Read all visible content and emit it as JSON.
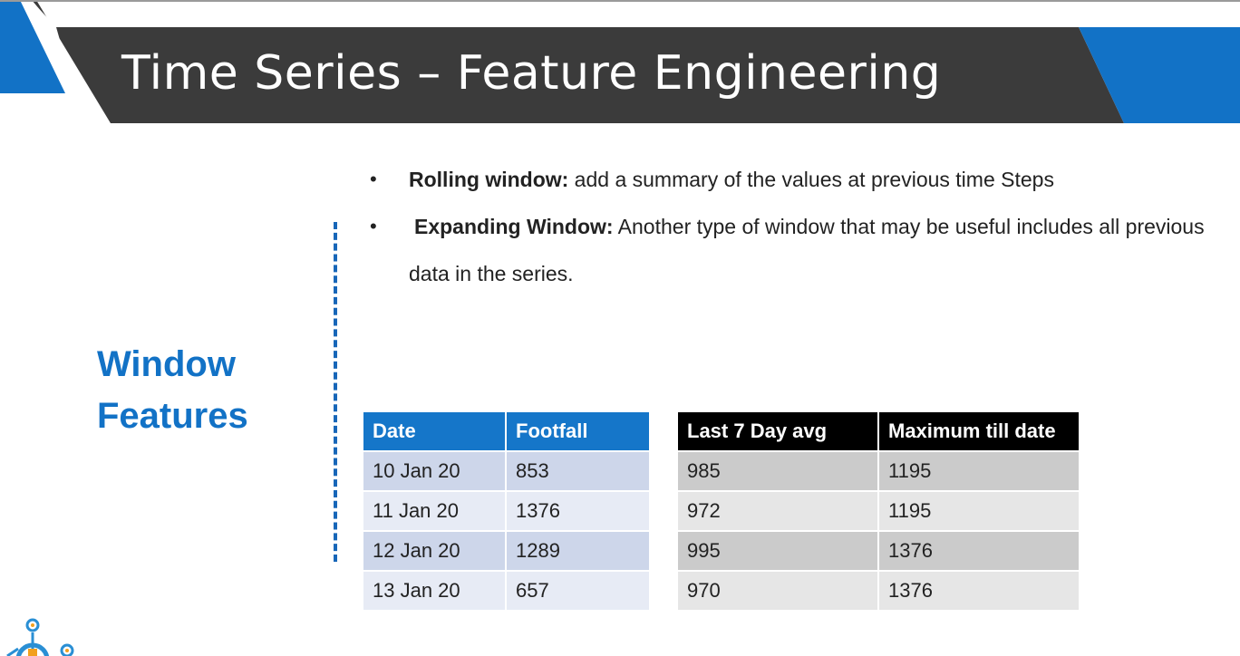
{
  "slide": {
    "title": "Time Series – Feature Engineering",
    "section_label_line1": "Window",
    "section_label_line2": "Features"
  },
  "bullets": [
    {
      "term": "Rolling window:",
      "text": " add a summary of the values at previous time Steps"
    },
    {
      "term": "Expanding Window:",
      "text": " Another type of window that may be useful includes all previous data in the series."
    }
  ],
  "table_footfall": {
    "headers": [
      "Date",
      "Footfall"
    ],
    "rows": [
      [
        "10 Jan 20",
        "853"
      ],
      [
        "11 Jan 20",
        "1376"
      ],
      [
        "12 Jan 20",
        "1289"
      ],
      [
        "13 Jan 20",
        "657"
      ]
    ]
  },
  "table_window": {
    "headers": [
      "Last 7 Day avg",
      "Maximum till date"
    ],
    "rows": [
      [
        "985",
        "1195"
      ],
      [
        "972",
        "1195"
      ],
      [
        "995",
        "1376"
      ],
      [
        "970",
        "1376"
      ]
    ]
  },
  "colors": {
    "banner_dark": "#3b3b3b",
    "accent_blue": "#1272c6",
    "table_header_blue": "#1576c9",
    "table_header_black": "#000000"
  },
  "icons": [
    "lightbulb-gear-logo-icon"
  ]
}
